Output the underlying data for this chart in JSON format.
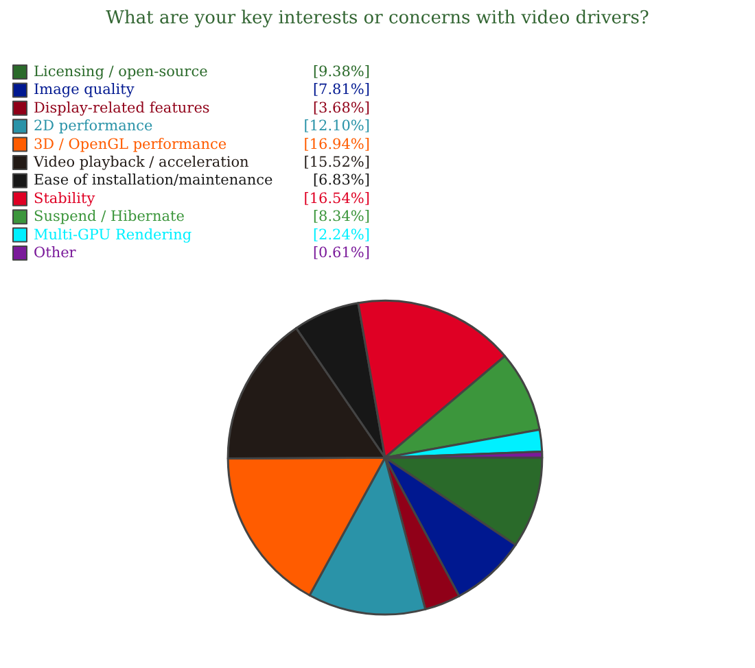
{
  "chart_data": {
    "type": "pie",
    "title": "What are your key interests or concerns with video drivers?",
    "categories": [
      "Licensing / open-source",
      "Image quality",
      "Display-related features",
      "2D performance",
      "3D / OpenGL performance",
      "Video playback / acceleration",
      "Ease of installation/maintenance",
      "Stability",
      "Suspend / Hibernate",
      "Multi-GPU Rendering",
      "Other"
    ],
    "values": [
      9.38,
      7.81,
      3.68,
      12.1,
      16.94,
      15.52,
      6.83,
      16.54,
      8.34,
      2.24,
      0.61
    ],
    "value_labels": [
      "[9.38%]",
      "[7.81%]",
      "[3.68%]",
      "[12.10%]",
      "[16.94%]",
      "[15.52%]",
      "[6.83%]",
      "[16.54%]",
      "[8.34%]",
      "[2.24%]",
      "[0.61%]"
    ],
    "colors": [
      "#2a6a2a",
      "#001890",
      "#900018",
      "#2a93a8",
      "#ff5c00",
      "#221a16",
      "#171717",
      "#df0024",
      "#3c963c",
      "#00f0ff",
      "#7a1a9a"
    ],
    "legend": "top left"
  }
}
